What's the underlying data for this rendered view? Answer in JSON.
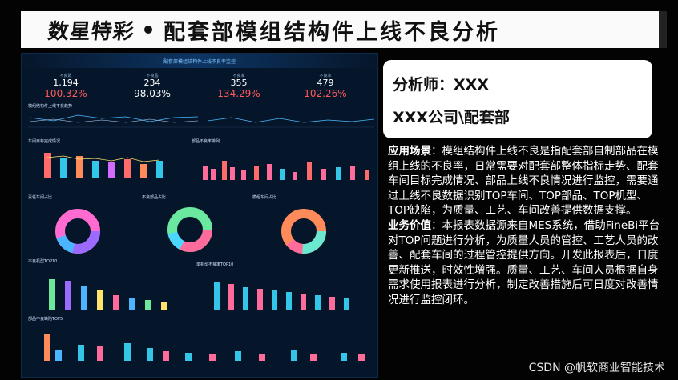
{
  "header": {
    "logo_text": "数星特彩",
    "title": "配套部模组结构件上线不良分析"
  },
  "dashboard": {
    "title": "配套部模组结构件上线不良率监控",
    "kpis": [
      {
        "label": "不良数",
        "value": "1,194",
        "pct": "100.32%",
        "pct_color": "#ff5a5a"
      },
      {
        "label": "不良品",
        "value": "234",
        "pct": "98.03%",
        "pct_color": "#ffffff"
      },
      {
        "label": "不良率",
        "value": "355",
        "pct": "134.29%",
        "pct_color": "#ff5a5a"
      },
      {
        "label": "不良率",
        "value": "479",
        "pct": "102.26%",
        "pct_color": "#ff5a5a"
      }
    ],
    "panels": {
      "trend": "模组结构件上线不良趋势",
      "workshop": "车间目标完成情况",
      "parts": "部品不良率排列",
      "pie1": "责任车间占比",
      "pie2": "不良部品占比",
      "pie3": "模组车间占比",
      "top1": "不良机型TOP10",
      "top2": "单机型不良率TOP10",
      "top3": "部品不良缺陷TOP5"
    }
  },
  "analyst": {
    "name_line": "分析师：XXX",
    "org_line": "XXX公司\\配套部"
  },
  "description": {
    "scene_label": "应用场景",
    "scene_text": "：模组结构件上线不良是指配套部自制部品在模组上线的不良率，日常需要对配套部整体指标走势、配套车间目标完成情况、部品上线不良情况进行监控，需要通过上线不良数据识别TOP车间、TOP部品、TOP机型、TOP缺陷，为质量、工艺、车间改善提供数据支撑。",
    "value_label": "业务价值",
    "value_text": "：本报表数据源来自MES系统，借助FineBi平台对TOP问题进行分析，为质量人员的管控、工艺人员的改善、配套车间的过程管控提供方向。开发此报表后，日度更新推送，时效性增强。质量、工艺、车间人员根据自身需求使用报表进行分析，制定改善措施后可日度对改善情况进行监控闭环。"
  },
  "watermark": "CSDN @帆软商业智能技术"
}
